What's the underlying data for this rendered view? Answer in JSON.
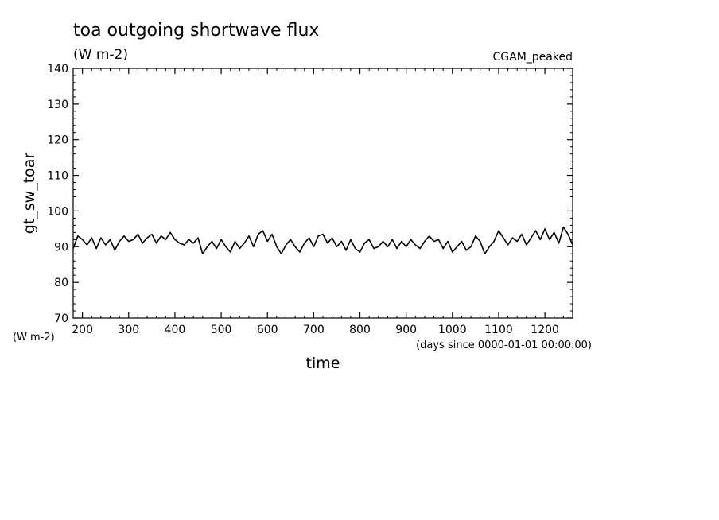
{
  "chart_data": {
    "type": "line",
    "title": "toa outgoing shortwave flux",
    "subtitle": "(W m-2)",
    "run_label": "CGAM_peaked",
    "xlabel": "time",
    "x_units": "(days since 0000-01-01 00:00:00)",
    "ylabel": "gt_sw_toar",
    "y_units": "(W m-2)",
    "xlim": [
      180,
      1260
    ],
    "ylim": [
      70,
      140
    ],
    "x_ticks": [
      200,
      300,
      400,
      500,
      600,
      700,
      800,
      900,
      1000,
      1100,
      1200
    ],
    "y_ticks": [
      70,
      80,
      90,
      100,
      110,
      120,
      130,
      140
    ],
    "grid": false,
    "line_color": "#000000",
    "series": [
      {
        "x": [
          180,
          190,
          200,
          210,
          220,
          230,
          240,
          250,
          260,
          270,
          280,
          290,
          300,
          310,
          320,
          330,
          340,
          350,
          360,
          370,
          380,
          390,
          400,
          410,
          420,
          430,
          440,
          450,
          460,
          470,
          480,
          490,
          500,
          510,
          520,
          530,
          540,
          550,
          560,
          570,
          580,
          590,
          600,
          610,
          620,
          630,
          640,
          650,
          660,
          670,
          680,
          690,
          700,
          710,
          720,
          730,
          740,
          750,
          760,
          770,
          780,
          790,
          800,
          810,
          820,
          830,
          840,
          850,
          860,
          870,
          880,
          890,
          900,
          910,
          920,
          930,
          940,
          950,
          960,
          970,
          980,
          990,
          1000,
          1010,
          1020,
          1030,
          1040,
          1050,
          1060,
          1070,
          1080,
          1090,
          1100,
          1110,
          1120,
          1130,
          1140,
          1150,
          1160,
          1170,
          1180,
          1190,
          1200,
          1210,
          1220,
          1230,
          1240,
          1250,
          1260
        ],
        "y": [
          89.5,
          93.0,
          92.0,
          90.5,
          92.5,
          89.5,
          92.5,
          90.5,
          92.0,
          89.0,
          91.5,
          93.0,
          91.5,
          92.0,
          93.5,
          91.0,
          92.5,
          93.5,
          91.0,
          93.0,
          92.0,
          94.0,
          92.0,
          91.0,
          90.5,
          92.0,
          91.0,
          92.5,
          88.0,
          90.0,
          91.5,
          89.5,
          92.0,
          90.0,
          88.5,
          91.5,
          89.5,
          91.0,
          93.0,
          90.0,
          93.5,
          94.5,
          91.5,
          93.5,
          90.0,
          88.0,
          90.5,
          92.0,
          90.0,
          88.5,
          91.0,
          92.5,
          90.0,
          93.0,
          93.5,
          91.0,
          92.5,
          90.0,
          91.5,
          89.0,
          92.0,
          89.5,
          88.5,
          91.0,
          92.0,
          89.5,
          90.0,
          91.5,
          90.0,
          92.0,
          89.5,
          91.5,
          90.0,
          92.0,
          90.5,
          89.5,
          91.5,
          93.0,
          91.5,
          92.0,
          89.5,
          91.5,
          88.5,
          90.0,
          91.5,
          89.0,
          90.0,
          93.0,
          91.5,
          88.0,
          90.0,
          91.5,
          94.5,
          92.5,
          90.5,
          92.5,
          91.5,
          93.5,
          90.5,
          92.5,
          94.5,
          92.0,
          95.0,
          92.0,
          94.0,
          91.0,
          95.5,
          93.5,
          90.5
        ]
      }
    ]
  }
}
